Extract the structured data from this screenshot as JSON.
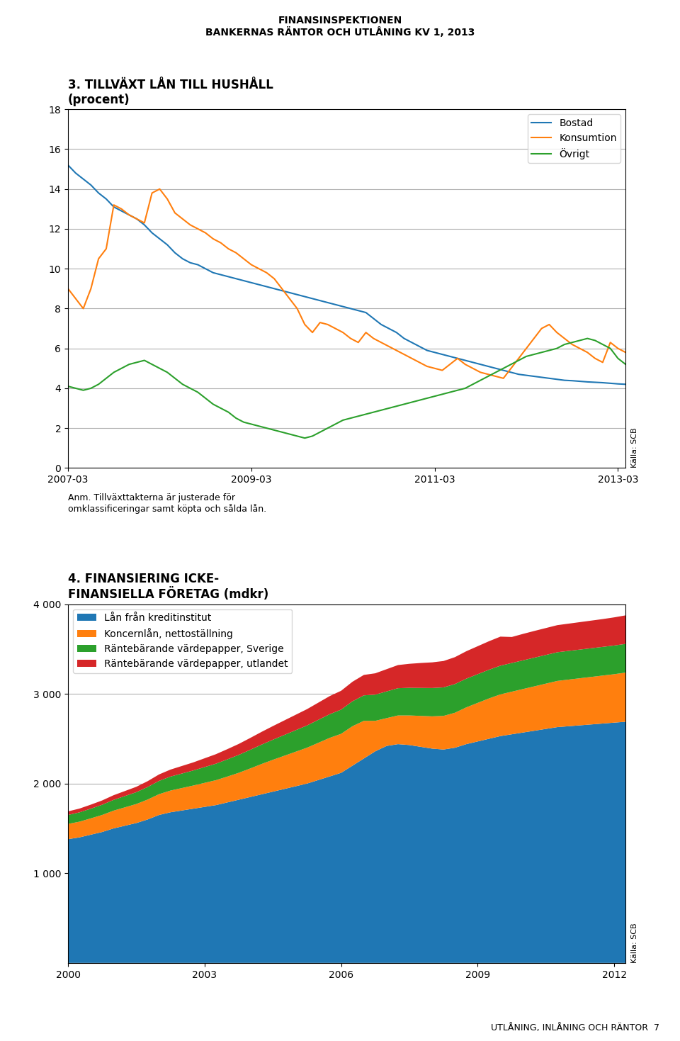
{
  "chart_data": [
    {
      "type": "line",
      "title": "3. TILLVÄXT LÅN TILL HUSHÅLL\n(procent)",
      "categories": [
        "2007-03",
        null,
        null,
        null,
        null,
        null,
        null,
        null,
        null,
        null,
        null,
        null,
        null,
        null,
        null,
        null,
        null,
        null,
        null,
        null,
        null,
        null,
        null,
        null,
        "2009-03",
        null,
        null,
        null,
        null,
        null,
        null,
        null,
        null,
        null,
        null,
        null,
        null,
        null,
        null,
        null,
        null,
        null,
        null,
        null,
        null,
        null,
        null,
        null,
        "2011-03",
        null,
        null,
        null,
        null,
        null,
        null,
        null,
        null,
        null,
        null,
        null,
        null,
        null,
        null,
        null,
        null,
        null,
        null,
        null,
        null,
        null,
        null,
        null,
        "2013-03",
        null
      ],
      "series": [
        {
          "name": "Bostad",
          "values": [
            15.2,
            14.8,
            14.5,
            14.2,
            13.8,
            13.5,
            13.1,
            12.9,
            12.7,
            12.5,
            12.2,
            11.8,
            11.5,
            11.2,
            10.8,
            10.5,
            10.3,
            10.2,
            10.0,
            9.8,
            9.7,
            9.6,
            9.5,
            9.4,
            9.3,
            9.2,
            9.1,
            9.0,
            8.9,
            8.8,
            8.7,
            8.6,
            8.5,
            8.4,
            8.3,
            8.2,
            8.1,
            8.0,
            7.9,
            7.8,
            7.5,
            7.2,
            7.0,
            6.8,
            6.5,
            6.3,
            6.1,
            5.9,
            5.8,
            5.7,
            5.6,
            5.5,
            5.4,
            5.3,
            5.2,
            5.1,
            5.0,
            4.9,
            4.8,
            4.7,
            4.65,
            4.6,
            4.55,
            4.5,
            4.45,
            4.4,
            4.38,
            4.35,
            4.32,
            4.3,
            4.28,
            4.25,
            4.22,
            4.2
          ]
        },
        {
          "name": "Konsumtion",
          "values": [
            9.0,
            8.5,
            8.0,
            9.0,
            10.5,
            11.0,
            13.2,
            13.0,
            12.7,
            12.5,
            12.3,
            13.8,
            14.0,
            13.5,
            12.8,
            12.5,
            12.2,
            12.0,
            11.8,
            11.5,
            11.3,
            11.0,
            10.8,
            10.5,
            10.2,
            10.0,
            9.8,
            9.5,
            9.0,
            8.5,
            8.0,
            7.2,
            6.8,
            7.3,
            7.2,
            7.0,
            6.8,
            6.5,
            6.3,
            6.8,
            6.5,
            6.3,
            6.1,
            5.9,
            5.7,
            5.5,
            5.3,
            5.1,
            5.0,
            4.9,
            5.2,
            5.5,
            5.2,
            5.0,
            4.8,
            4.7,
            4.6,
            4.5,
            5.0,
            5.5,
            6.0,
            6.5,
            7.0,
            7.2,
            6.8,
            6.5,
            6.2,
            6.0,
            5.8,
            5.5,
            5.3,
            6.3,
            6.0,
            5.8
          ]
        },
        {
          "name": "Övrigt",
          "values": [
            4.1,
            4.0,
            3.9,
            4.0,
            4.2,
            4.5,
            4.8,
            5.0,
            5.2,
            5.3,
            5.4,
            5.2,
            5.0,
            4.8,
            4.5,
            4.2,
            4.0,
            3.8,
            3.5,
            3.2,
            3.0,
            2.8,
            2.5,
            2.3,
            2.2,
            2.1,
            2.0,
            1.9,
            1.8,
            1.7,
            1.6,
            1.5,
            1.6,
            1.8,
            2.0,
            2.2,
            2.4,
            2.5,
            2.6,
            2.7,
            2.8,
            2.9,
            3.0,
            3.1,
            3.2,
            3.3,
            3.4,
            3.5,
            3.6,
            3.7,
            3.8,
            3.9,
            4.0,
            4.2,
            4.4,
            4.6,
            4.8,
            5.0,
            5.2,
            5.4,
            5.6,
            5.7,
            5.8,
            5.9,
            6.0,
            6.2,
            6.3,
            6.4,
            6.5,
            6.4,
            6.2,
            6.0,
            5.5,
            5.2
          ]
        }
      ],
      "ylim": [
        0,
        18
      ],
      "yticks": [
        0,
        2,
        4,
        6,
        8,
        10,
        12,
        14,
        16,
        18
      ],
      "grid": true,
      "legend": "upper right",
      "annotations": [
        "Källa: SCB",
        "Anm. Tillväxttakterna är justerade för\nomklassificeringar samt köpta och sålda lån."
      ]
    },
    {
      "type": "area",
      "stacked": true,
      "title": "4. FINANSIERING ICKE-\nFINANSIELLA FÖRETAG (mdkr)",
      "x": [
        2000.0,
        2000.25,
        2000.5,
        2000.75,
        2001.0,
        2001.25,
        2001.5,
        2001.75,
        2002.0,
        2002.25,
        2002.5,
        2002.75,
        2003.0,
        2003.25,
        2003.5,
        2003.75,
        2004.0,
        2004.25,
        2004.5,
        2004.75,
        2005.0,
        2005.25,
        2005.5,
        2005.75,
        2006.0,
        2006.25,
        2006.5,
        2006.75,
        2007.0,
        2007.25,
        2007.5,
        2007.75,
        2008.0,
        2008.25,
        2008.5,
        2008.75,
        2009.0,
        2009.25,
        2009.5,
        2009.75,
        2010.0,
        2010.25,
        2010.5,
        2010.75,
        2011.0,
        2011.25,
        2011.5,
        2011.75,
        2012.0,
        2012.25
      ],
      "series": [
        {
          "name": "Lån från kreditinstitut",
          "values": [
            1380,
            1400,
            1430,
            1460,
            1500,
            1530,
            1560,
            1600,
            1650,
            1680,
            1700,
            1720,
            1740,
            1760,
            1790,
            1820,
            1850,
            1880,
            1910,
            1940,
            1970,
            2000,
            2040,
            2080,
            2120,
            2200,
            2280,
            2360,
            2420,
            2440,
            2430,
            2410,
            2390,
            2380,
            2400,
            2440,
            2470,
            2500,
            2530,
            2550,
            2570,
            2590,
            2610,
            2630,
            2640,
            2650,
            2660,
            2670,
            2680,
            2690
          ]
        },
        {
          "name": "Koncernlån, nettoställning",
          "values": [
            170,
            175,
            182,
            190,
            198,
            205,
            212,
            222,
            232,
            242,
            250,
            258,
            268,
            278,
            288,
            300,
            318,
            338,
            355,
            370,
            385,
            400,
            415,
            430,
            435,
            440,
            420,
            340,
            310,
            320,
            330,
            345,
            360,
            375,
            390,
            410,
            430,
            450,
            465,
            475,
            485,
            495,
            505,
            515,
            520,
            525,
            530,
            535,
            540,
            548
          ]
        },
        {
          "name": "Räntebärande värdepapper, Sverige",
          "values": [
            100,
            104,
            108,
            114,
            120,
            126,
            132,
            140,
            148,
            156,
            162,
            168,
            176,
            184,
            192,
            200,
            208,
            216,
            224,
            232,
            240,
            248,
            256,
            264,
            270,
            278,
            284,
            292,
            298,
            304,
            308,
            312,
            316,
            318,
            320,
            320,
            320,
            320,
            320,
            320,
            320,
            320,
            320,
            320,
            320,
            320,
            320,
            320,
            320,
            320
          ]
        },
        {
          "name": "Räntebärande värdepapper, utlandet",
          "values": [
            40,
            42,
            45,
            48,
            52,
            56,
            60,
            65,
            72,
            78,
            84,
            90,
            98,
            106,
            114,
            122,
            132,
            142,
            152,
            162,
            172,
            182,
            192,
            202,
            210,
            218,
            228,
            238,
            248,
            258,
            268,
            278,
            286,
            294,
            300,
            306,
            312,
            318,
            324,
            290,
            295,
            298,
            300,
            302,
            304,
            306,
            308,
            310,
            314,
            318
          ]
        }
      ],
      "xlim": [
        2000.0,
        2012.25
      ],
      "xticks": [
        2000,
        2003,
        2006,
        2009,
        2012
      ],
      "ylim": [
        0,
        4000
      ],
      "yticks": [
        {
          "value": 1000,
          "label": "1 000"
        },
        {
          "value": 2000,
          "label": "2 000"
        },
        {
          "value": 3000,
          "label": "3 000"
        },
        {
          "value": 4000,
          "label": "4 000"
        }
      ],
      "grid": true,
      "legend": "upper left",
      "annotations": [
        "Källa: SCB"
      ]
    }
  ],
  "annotations": [
    "FINANSINSPEKTIONEN\nBANKERNAS RÄNTOR OCH UTLÅNING KV 1, 2013",
    "UTLÅNING, INLÅNING OCH RÄNTOR  7"
  ]
}
